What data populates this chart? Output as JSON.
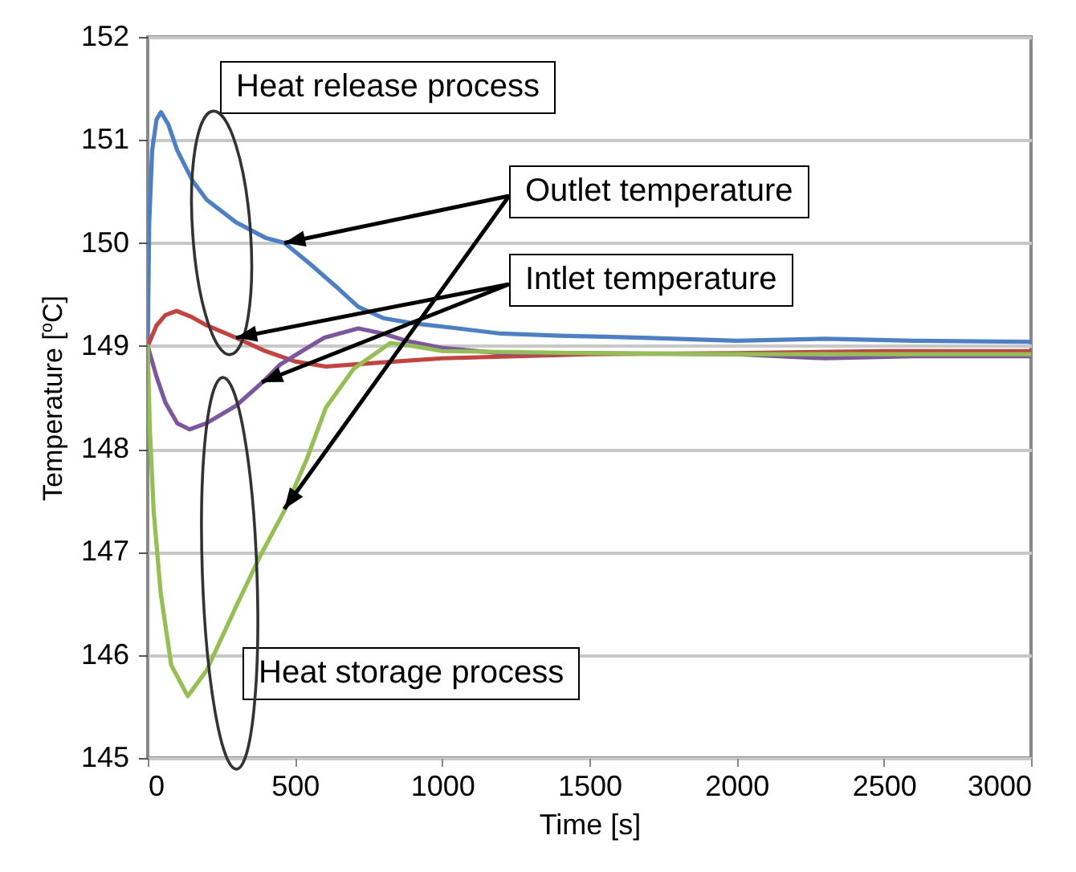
{
  "chart_data": {
    "type": "line",
    "xlabel": "Time [s]",
    "ylabel": "Temperature [$^{o}$C]",
    "xlim": [
      0,
      3000
    ],
    "xticks": [
      0,
      500,
      1000,
      1500,
      2000,
      2500,
      3000
    ],
    "ylim": [
      145,
      152
    ],
    "yticks": [
      145,
      146,
      147,
      148,
      149,
      150,
      151,
      152
    ],
    "grid": "y",
    "legend": false,
    "marker": "none",
    "line_style": "solid",
    "annotations": [
      "Heat release process",
      {
        "text": "Outlet temperature",
        "x": 464,
        "y": 150.0
      },
      {
        "text": "Intlet temperature",
        "x": 300,
        "y": 149.08
      },
      "Heat storage process"
    ],
    "series": [
      {
        "color": "#4a7fc9",
        "x": [
          0,
          5,
          15,
          30,
          45,
          70,
          100,
          153,
          200,
          300,
          400,
          464,
          550,
          650,
          715,
          800,
          900,
          1025,
          1200,
          1400,
          1680,
          2000,
          2300,
          2600,
          3000
        ],
        "values": [
          149,
          150.2,
          150.9,
          151.2,
          151.27,
          151.15,
          150.9,
          150.6,
          150.42,
          150.2,
          150.05,
          150.0,
          149.8,
          149.55,
          149.38,
          149.27,
          149.22,
          149.18,
          149.12,
          149.1,
          149.08,
          149.05,
          149.07,
          149.05,
          149.04
        ]
      },
      {
        "color": "#c8413c",
        "x": [
          0,
          30,
          60,
          98,
          150,
          200,
          300,
          400,
          500,
          605,
          700,
          845,
          1000,
          1500,
          2000,
          2500,
          3000
        ],
        "values": [
          149,
          149.2,
          149.3,
          149.34,
          149.28,
          149.2,
          149.08,
          148.95,
          148.85,
          148.8,
          148.82,
          148.85,
          148.88,
          148.92,
          148.93,
          148.95,
          148.95
        ]
      },
      {
        "color": "#7d55a3",
        "x": [
          0,
          30,
          60,
          100,
          142,
          200,
          300,
          387,
          450,
          535,
          600,
          715,
          800,
          878,
          1000,
          1200,
          1500,
          2000,
          2300,
          2600,
          3000
        ],
        "values": [
          149,
          148.7,
          148.45,
          148.25,
          148.19,
          148.25,
          148.42,
          148.64,
          148.82,
          148.97,
          149.08,
          149.17,
          149.12,
          149.05,
          148.98,
          148.93,
          148.93,
          148.92,
          148.88,
          148.9,
          148.9
        ]
      },
      {
        "color": "#93c04e",
        "x": [
          0,
          7,
          20,
          44,
          80,
          136,
          200,
          300,
          380,
          464,
          540,
          605,
          700,
          824,
          900,
          1000,
          1500,
          2000,
          2500,
          3000
        ],
        "values": [
          149,
          148.2,
          147.4,
          146.6,
          145.9,
          145.6,
          145.85,
          146.47,
          146.95,
          147.4,
          147.9,
          148.4,
          148.78,
          149.03,
          149.0,
          148.95,
          148.93,
          148.92,
          148.92,
          148.92
        ]
      }
    ]
  }
}
